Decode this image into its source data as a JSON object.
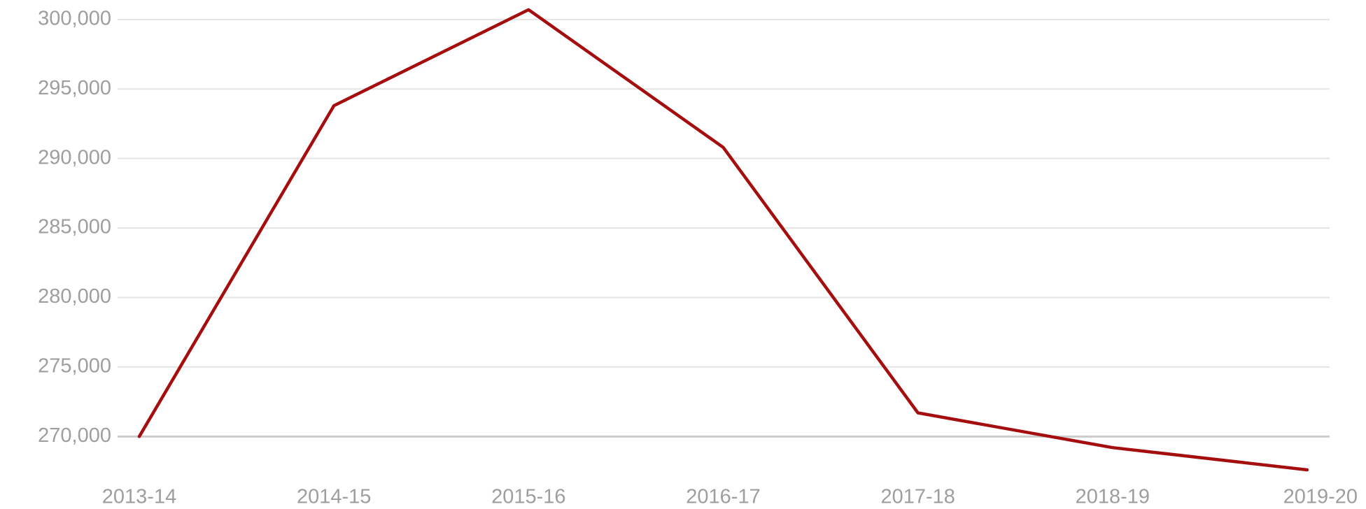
{
  "chart_data": {
    "type": "line",
    "categories": [
      "2013-14",
      "2014-15",
      "2015-16",
      "2016-17",
      "2017-18",
      "2018-19",
      "2019-20"
    ],
    "series": [
      {
        "color": "#a50e0e",
        "values": [
          270000,
          293800,
          300700,
          290800,
          271700,
          269200,
          267600
        ]
      }
    ],
    "ylim": [
      267300,
      301400
    ],
    "yticks": [
      {
        "value": 270000,
        "label": "270,000"
      },
      {
        "value": 275000,
        "label": "275,000"
      },
      {
        "value": 280000,
        "label": "280,000"
      },
      {
        "value": 285000,
        "label": "285,000"
      },
      {
        "value": 290000,
        "label": "290,000"
      },
      {
        "value": 295000,
        "label": "295,000"
      },
      {
        "value": 300000,
        "label": "300,000"
      }
    ],
    "grid": true
  }
}
